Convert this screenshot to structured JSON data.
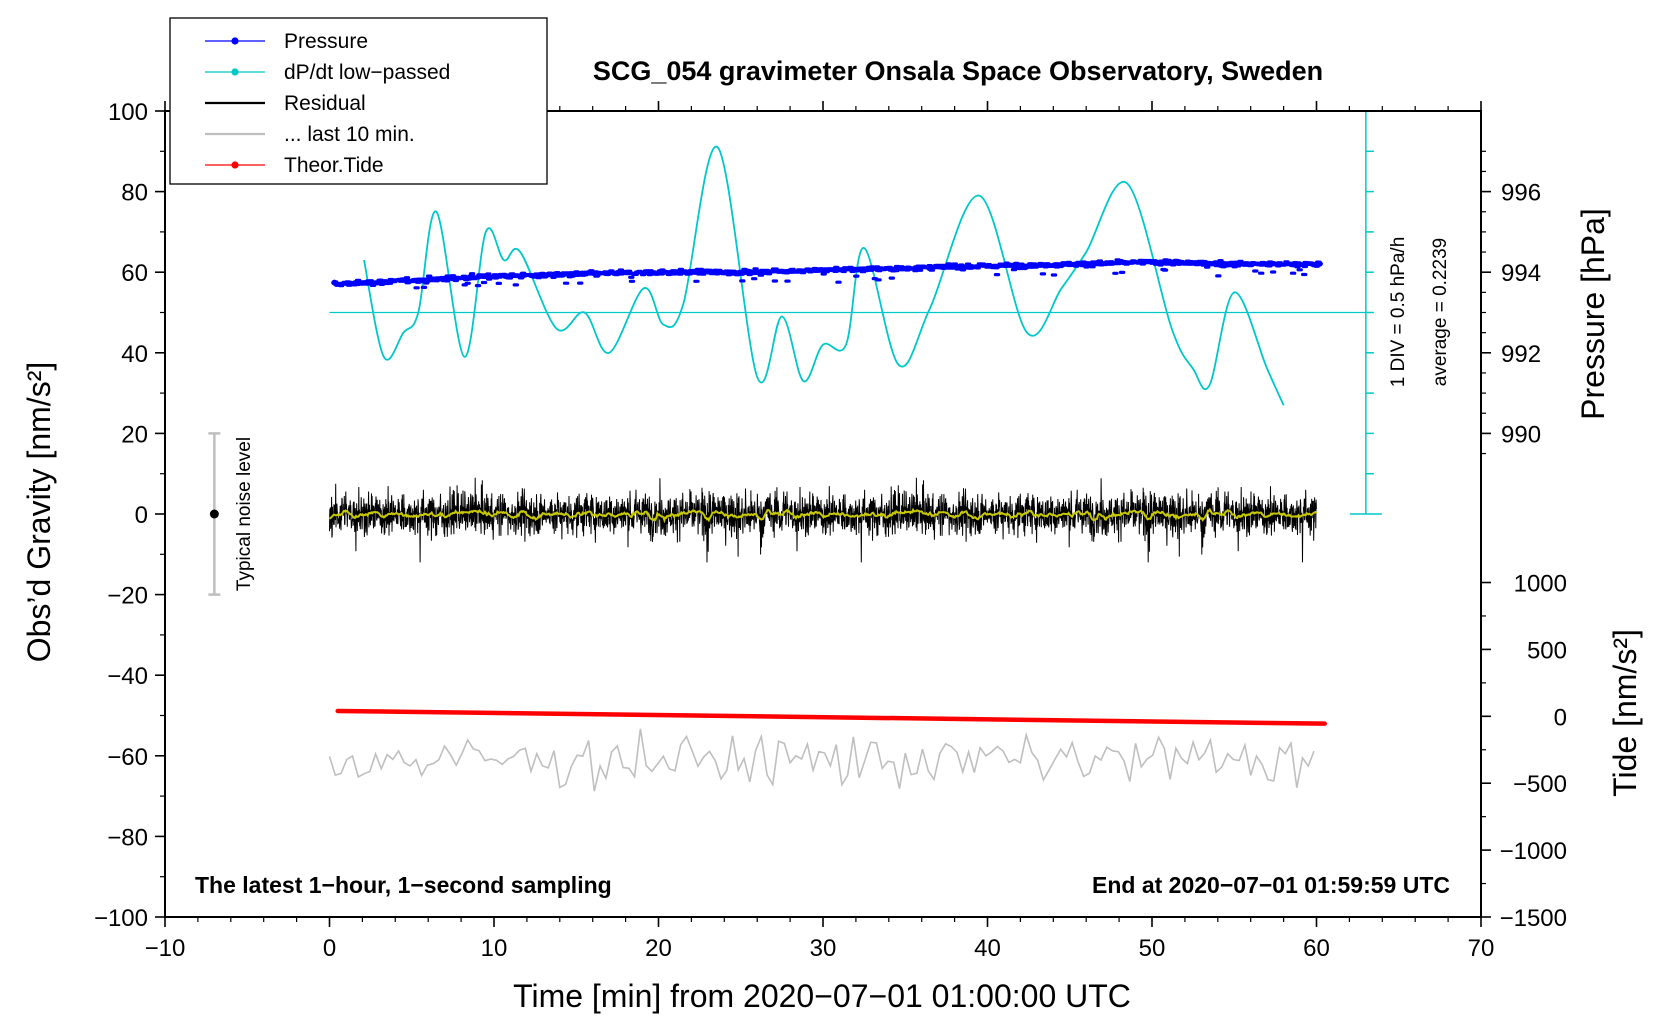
{
  "chart_data": {
    "type": "line",
    "title": "SCG_054 gravimeter Onsala Space Observatory, Sweden",
    "xlabel": "Time [min] from 2020−07−01 01:00:00 UTC",
    "ylabel_left": "Obs’d Gravity [nm/s²]",
    "ylabel_right_pressure": "Pressure [hPa]",
    "ylabel_right_tide": "Tide [nm/s²]",
    "xlim": [
      -10,
      70
    ],
    "ylim_left": [
      -100,
      100
    ],
    "x_ticks": [
      -10,
      0,
      10,
      20,
      30,
      40,
      50,
      60,
      70
    ],
    "x_tick_labels": [
      "−10",
      "0",
      "10",
      "20",
      "30",
      "40",
      "50",
      "60",
      "70"
    ],
    "y_left_ticks": [
      100,
      80,
      60,
      40,
      20,
      0,
      -20,
      -40,
      -60,
      -80,
      -100
    ],
    "y_left_tick_labels": [
      "100",
      "80",
      "60",
      "40",
      "20",
      "0",
      "−20",
      "−40",
      "−60",
      "−80",
      "−100"
    ],
    "pressure_axis": {
      "ticks": [
        990,
        992,
        994,
        996
      ],
      "labels": [
        "990",
        "992",
        "994",
        "996"
      ],
      "maps_to_left": [
        [
          990,
          20
        ],
        [
          996,
          80
        ]
      ]
    },
    "tide_axis": {
      "ticks": [
        1000,
        500,
        0,
        -500,
        -1000,
        -1500
      ],
      "labels": [
        "1000",
        "500",
        "0",
        "−500",
        "−1000",
        "−1500"
      ],
      "maps_to_left": [
        [
          1000,
          -17
        ],
        [
          -1500,
          -100
        ]
      ]
    },
    "legend": [
      {
        "label": "Pressure",
        "color": "#0000ff",
        "marker": true
      },
      {
        "label": "dP/dt low−passed",
        "color": "#00c8c8",
        "marker": true
      },
      {
        "label": "Residual",
        "color": "#000000",
        "marker": false
      },
      {
        "label": "... last 10 min.",
        "color": "#bfbfbf",
        "marker": false
      },
      {
        "label": "Theor.Tide",
        "color": "#ff0000",
        "marker": true
      }
    ],
    "legend_position": "top-left",
    "notes": {
      "bottom_left": "The latest 1−hour, 1−second sampling",
      "bottom_right": "End at 2020−07−01 01:59:59 UTC",
      "noise_label": "Typical noise level",
      "div_label": "1 DIV = 0.5 hPa/h",
      "average_label": "average = 0.2239"
    },
    "noise_bar": {
      "x": -7,
      "y": 0,
      "low": -20,
      "high": 20
    },
    "dpdt_scale": {
      "x": 63,
      "y_from": 0,
      "y_to": 100,
      "baseline_y": 50,
      "divisions": 10
    },
    "series": [
      {
        "name": "Pressure",
        "color": "#0000ff",
        "unit": "hPa",
        "x": [
          0.3,
          5,
          10,
          15,
          20,
          25,
          30,
          35,
          40,
          45,
          50,
          55,
          60.2
        ],
        "y": [
          993.7,
          993.8,
          993.9,
          993.95,
          994.0,
          994.0,
          994.05,
          994.1,
          994.15,
          994.2,
          994.25,
          994.2,
          994.2
        ]
      },
      {
        "name": "dP/dt low-passed",
        "color": "#00c8c8",
        "x": [
          2.1,
          3.3,
          4.5,
          5.4,
          6.5,
          8.2,
          9.5,
          10.6,
          11.6,
          13.8,
          15.5,
          17.0,
          19.1,
          20.3,
          21.5,
          23.6,
          26.0,
          27.5,
          28.8,
          30.0,
          31.4,
          32.5,
          34.6,
          36.5,
          39.5,
          42.4,
          44.5,
          46.0,
          48.5,
          51.2,
          52.5,
          53.5,
          55.0,
          57.0,
          58.0
        ],
        "y": [
          63,
          39,
          45,
          50,
          75,
          39,
          70,
          63,
          65,
          46,
          50,
          40,
          56,
          47,
          52,
          91,
          34,
          49,
          33,
          42,
          42,
          66,
          37,
          51,
          79,
          45,
          56,
          65,
          82,
          46,
          36,
          32,
          55,
          36,
          27
        ]
      },
      {
        "name": "Residual",
        "color": "#000000",
        "x_range": [
          0,
          60
        ],
        "center": 0,
        "amplitude": [
          -12,
          9
        ]
      },
      {
        "name": "... last 10 min.",
        "color": "#bfbfbf",
        "x_range": [
          0,
          60
        ],
        "center": -61,
        "amplitude": [
          -70,
          -53
        ]
      },
      {
        "name": "Theor.Tide",
        "color": "#ff0000",
        "unit": "nm/s²",
        "x": [
          0.5,
          60.5
        ],
        "y": [
          40,
          -55
        ]
      }
    ]
  }
}
